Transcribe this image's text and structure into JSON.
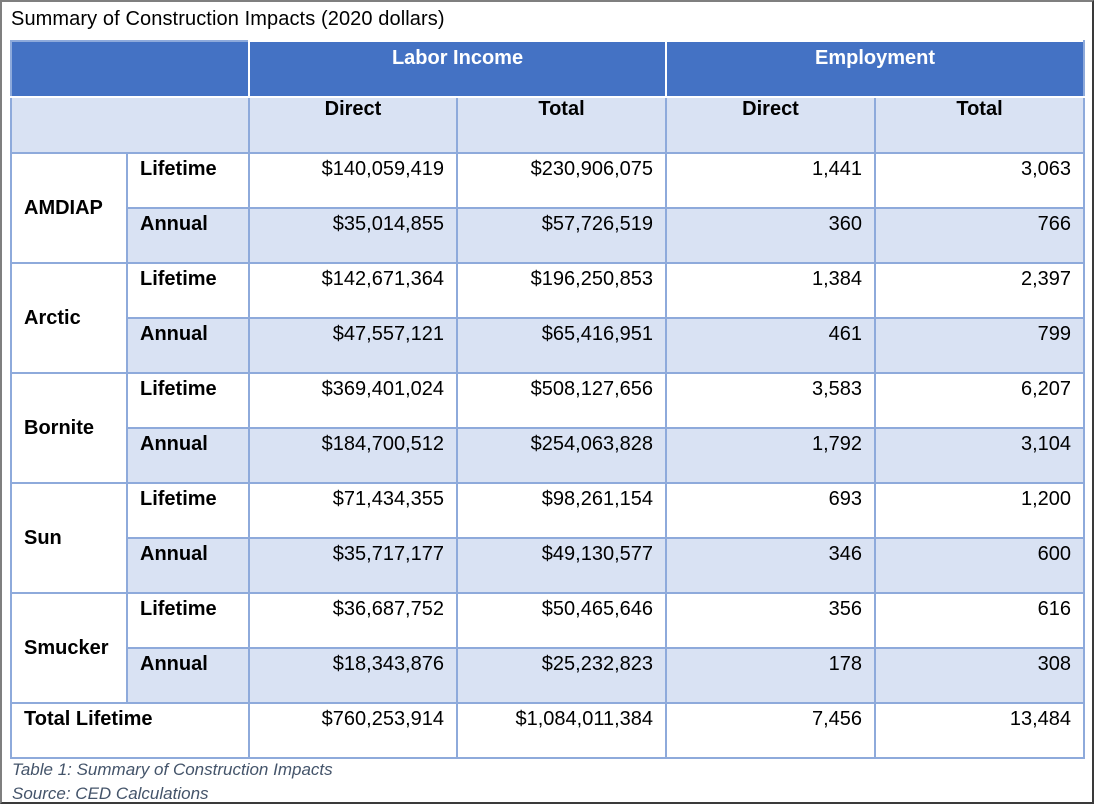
{
  "title": "Summary of Construction Impacts (2020 dollars)",
  "header": {
    "groups": [
      "Labor Income",
      "Employment"
    ],
    "subheaders": [
      "Direct",
      "Total",
      "Direct",
      "Total"
    ]
  },
  "rows": [
    {
      "name": "AMDIAP",
      "lifetime": {
        "label": "Lifetime",
        "values": [
          "$140,059,419",
          "$230,906,075",
          "1,441",
          "3,063"
        ]
      },
      "annual": {
        "label": "Annual",
        "values": [
          "$35,014,855",
          "$57,726,519",
          "360",
          "766"
        ]
      }
    },
    {
      "name": "Arctic",
      "lifetime": {
        "label": "Lifetime",
        "values": [
          "$142,671,364",
          "$196,250,853",
          "1,384",
          "2,397"
        ]
      },
      "annual": {
        "label": "Annual",
        "values": [
          "$47,557,121",
          "$65,416,951",
          "461",
          "799"
        ]
      }
    },
    {
      "name": "Bornite",
      "lifetime": {
        "label": "Lifetime",
        "values": [
          "$369,401,024",
          "$508,127,656",
          "3,583",
          "6,207"
        ]
      },
      "annual": {
        "label": "Annual",
        "values": [
          "$184,700,512",
          "$254,063,828",
          "1,792",
          "3,104"
        ]
      }
    },
    {
      "name": "Sun",
      "lifetime": {
        "label": "Lifetime",
        "values": [
          "$71,434,355",
          "$98,261,154",
          "693",
          "1,200"
        ]
      },
      "annual": {
        "label": "Annual",
        "values": [
          "$35,717,177",
          "$49,130,577",
          "346",
          "600"
        ]
      }
    },
    {
      "name": "Smucker",
      "lifetime": {
        "label": "Lifetime",
        "values": [
          "$36,687,752",
          "$50,465,646",
          "356",
          "616"
        ]
      },
      "annual": {
        "label": "Annual",
        "values": [
          "$18,343,876",
          "$25,232,823",
          "178",
          "308"
        ]
      }
    }
  ],
  "total": {
    "label": "Total Lifetime",
    "values": [
      "$760,253,914",
      "$1,084,011,384",
      "7,456",
      "13,484"
    ]
  },
  "caption": {
    "line1": "Table 1: Summary of Construction Impacts",
    "line2": "Source: CED Calculations"
  },
  "colors": {
    "header_blue": "#4472c4",
    "band_light": "#d9e2f3",
    "grid": "#8eaadb",
    "caption": "#44546a"
  }
}
